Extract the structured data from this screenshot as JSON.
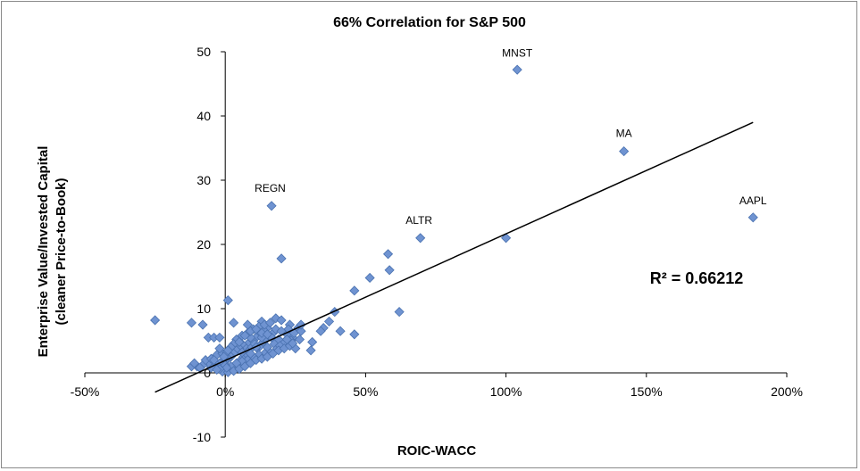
{
  "chart_data": {
    "type": "scatter",
    "title": "66% Correlation for S&P 500",
    "xlabel": "ROIC-WACC",
    "ylabel_line1": "Enterprise Value/Invested Capital",
    "ylabel_line2": "(cleaner Price-to-Book)",
    "x_unit": "percent",
    "xlim": [
      -50,
      200
    ],
    "ylim": [
      -10,
      50
    ],
    "x_ticks": [
      -50,
      0,
      50,
      100,
      150,
      200
    ],
    "x_tick_labels": [
      "-50%",
      "0%",
      "50%",
      "100%",
      "150%",
      "200%"
    ],
    "y_ticks": [
      -10,
      0,
      10,
      20,
      30,
      40,
      50
    ],
    "y_tick_labels": [
      "-10",
      "0",
      "10",
      "20",
      "30",
      "40",
      "50"
    ],
    "grid": false,
    "marker_color": "#6f93d1",
    "marker_edge": "#4a72b0",
    "trendline": {
      "x": [
        -25,
        188
      ],
      "y": [
        -3,
        39
      ]
    },
    "r_squared_label": "R² = 0.66212",
    "annotations": [
      {
        "text": "MNST",
        "x": 104,
        "y": 47
      },
      {
        "text": "MA",
        "x": 142,
        "y": 34.5
      },
      {
        "text": "AAPL",
        "x": 188,
        "y": 24
      },
      {
        "text": "REGN",
        "x": 16,
        "y": 26
      },
      {
        "text": "ALTR",
        "x": 69,
        "y": 21
      }
    ],
    "points": [
      [
        104,
        47.2
      ],
      [
        142,
        34.5
      ],
      [
        188,
        24.2
      ],
      [
        16.5,
        26
      ],
      [
        69.5,
        21
      ],
      [
        100,
        21
      ],
      [
        58,
        18.5
      ],
      [
        58.5,
        16
      ],
      [
        20,
        17.8
      ],
      [
        51.5,
        14.8
      ],
      [
        46,
        12.8
      ],
      [
        62,
        9.5
      ],
      [
        46,
        6
      ],
      [
        41,
        6.5
      ],
      [
        39,
        9.5
      ],
      [
        37,
        8
      ],
      [
        35,
        7
      ],
      [
        34,
        6.5
      ],
      [
        31,
        4.8
      ],
      [
        30.5,
        3.5
      ],
      [
        -25,
        8.2
      ],
      [
        -12,
        7.8
      ],
      [
        -8,
        7.5
      ],
      [
        -6,
        5.5
      ],
      [
        -4,
        5.5
      ],
      [
        -2,
        5.5
      ],
      [
        1,
        11.3
      ],
      [
        3,
        7.8
      ],
      [
        8,
        7.5
      ],
      [
        13,
        8
      ],
      [
        18,
        8.5
      ],
      [
        20,
        8.2
      ],
      [
        23,
        7.5
      ],
      [
        26,
        7
      ],
      [
        27,
        6.5
      ],
      [
        24,
        5.5
      ],
      [
        22,
        6
      ],
      [
        21,
        4.8
      ],
      [
        19,
        5.2
      ],
      [
        17,
        6.2
      ],
      [
        15,
        7
      ],
      [
        14,
        6.5
      ],
      [
        12,
        6
      ],
      [
        11,
        5.5
      ],
      [
        10,
        5
      ],
      [
        9,
        5.5
      ],
      [
        8,
        4.5
      ],
      [
        7,
        4
      ],
      [
        6,
        4.5
      ],
      [
        5,
        3.8
      ],
      [
        4,
        3.5
      ],
      [
        3,
        3
      ],
      [
        2,
        2.5
      ],
      [
        1,
        2.2
      ],
      [
        0,
        2
      ],
      [
        -1,
        1.8
      ],
      [
        -2,
        1.5
      ],
      [
        -3,
        1.2
      ],
      [
        -4,
        1
      ],
      [
        -5,
        0.8
      ],
      [
        -6,
        1.5
      ],
      [
        -8,
        1.2
      ],
      [
        -10,
        1
      ],
      [
        -12,
        1
      ],
      [
        -7,
        2
      ],
      [
        -5,
        2.2
      ],
      [
        -3,
        2.8
      ],
      [
        -1,
        3
      ],
      [
        0.5,
        3.2
      ],
      [
        1.5,
        0.5
      ],
      [
        2.5,
        0.8
      ],
      [
        3.5,
        1
      ],
      [
        4.5,
        1.5
      ],
      [
        5.5,
        2
      ],
      [
        6.5,
        2.5
      ],
      [
        7.5,
        3
      ],
      [
        8.5,
        3.5
      ],
      [
        9.5,
        4
      ],
      [
        10.5,
        4.5
      ],
      [
        11.5,
        3.8
      ],
      [
        12.5,
        4.2
      ],
      [
        13.5,
        4.8
      ],
      [
        14.5,
        5.2
      ],
      [
        15.5,
        5.8
      ],
      [
        16.5,
        5.5
      ],
      [
        17.5,
        4.5
      ],
      [
        18.5,
        3.8
      ],
      [
        19.5,
        4.2
      ],
      [
        16,
        3.2
      ],
      [
        14,
        3
      ],
      [
        12,
        2.8
      ],
      [
        10,
        2.5
      ],
      [
        8,
        2
      ],
      [
        6,
        1.8
      ],
      [
        4,
        1.5
      ],
      [
        2,
        1
      ],
      [
        0,
        0.5
      ],
      [
        -1,
        0.2
      ],
      [
        1,
        0.1
      ],
      [
        3,
        0.3
      ],
      [
        5,
        0.6
      ],
      [
        7,
        1
      ],
      [
        9,
        1.5
      ],
      [
        11,
        2
      ],
      [
        13,
        2.2
      ],
      [
        15,
        2.5
      ],
      [
        17,
        3
      ],
      [
        19,
        3.5
      ],
      [
        21,
        3.8
      ],
      [
        23,
        4.2
      ],
      [
        25,
        3.8
      ],
      [
        23.5,
        5
      ],
      [
        22.5,
        6.8
      ],
      [
        24.5,
        6.2
      ],
      [
        26.5,
        5.2
      ],
      [
        10,
        6.8
      ],
      [
        12,
        7.2
      ],
      [
        14,
        7.5
      ],
      [
        16,
        7.8
      ],
      [
        8,
        6.2
      ],
      [
        6,
        5.8
      ],
      [
        4,
        5.2
      ],
      [
        3,
        4.5
      ],
      [
        2,
        4
      ],
      [
        1,
        3.5
      ],
      [
        -0.5,
        2.5
      ],
      [
        0,
        1.2
      ],
      [
        0.5,
        0.8
      ],
      [
        -2,
        0.6
      ],
      [
        -3,
        0.5
      ],
      [
        -4,
        2
      ],
      [
        6,
        3.2
      ],
      [
        9,
        3
      ],
      [
        11,
        4
      ],
      [
        13,
        5.5
      ],
      [
        15,
        4
      ],
      [
        18,
        6.8
      ],
      [
        20,
        6.5
      ],
      [
        22,
        5.2
      ],
      [
        24,
        4.6
      ],
      [
        27,
        7.5
      ],
      [
        5,
        4.8
      ],
      [
        7,
        5.8
      ],
      [
        9,
        6.5
      ],
      [
        11,
        6.8
      ],
      [
        13,
        6.2
      ],
      [
        15,
        6
      ],
      [
        -2,
        3.8
      ],
      [
        -9,
        0.8
      ],
      [
        -11,
        1.5
      ]
    ]
  }
}
